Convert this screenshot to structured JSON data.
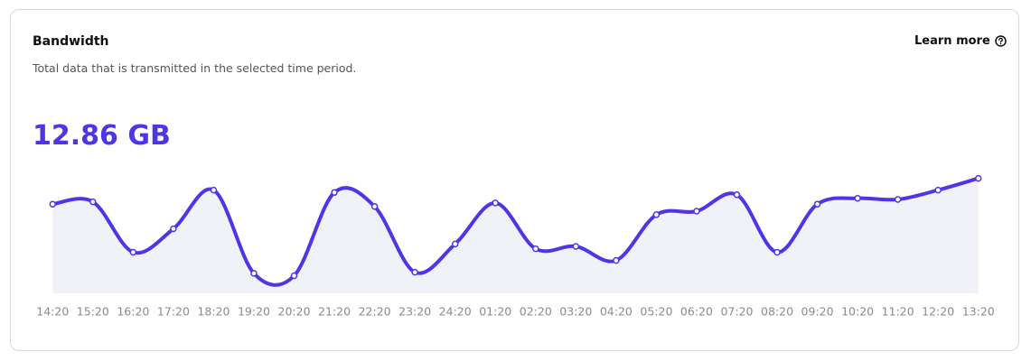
{
  "header": {
    "title": "Bandwidth",
    "description": "Total data that is transmitted in the selected time period.",
    "link": "Learn more"
  },
  "total": "12.86 GB",
  "chart_data": {
    "type": "line",
    "categories": [
      "14:20",
      "15:20",
      "16:20",
      "17:20",
      "18:20",
      "19:20",
      "20:20",
      "21:20",
      "22:20",
      "23:20",
      "24:20",
      "01:20",
      "02:20",
      "03:20",
      "04:20",
      "05:20",
      "06:20",
      "07:20",
      "08:20",
      "09:20",
      "10:20",
      "11:20",
      "12:20",
      "13:20"
    ],
    "values": [
      76,
      78,
      35,
      55,
      88,
      17,
      15,
      86,
      74,
      18,
      42,
      77,
      38,
      40,
      28,
      67,
      70,
      84,
      35,
      76,
      81,
      80,
      88,
      98
    ],
    "ylim": [
      0,
      100
    ],
    "color": "#4f35e8"
  }
}
